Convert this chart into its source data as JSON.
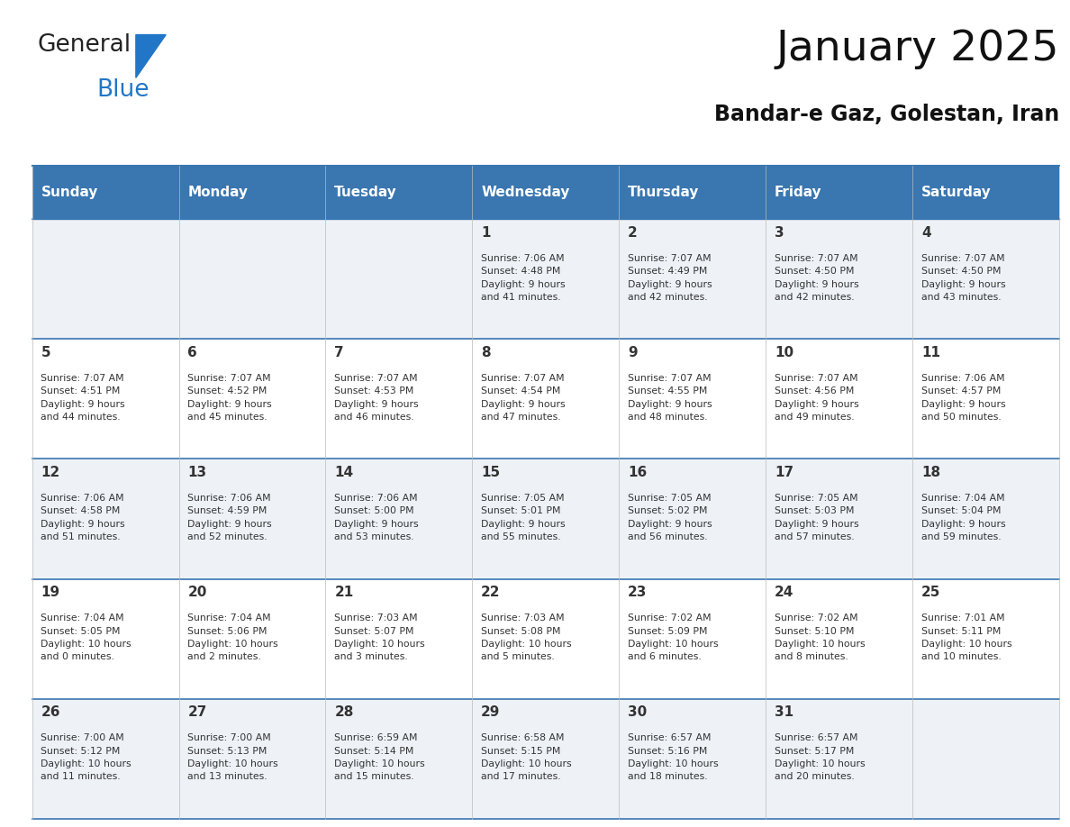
{
  "title": "January 2025",
  "subtitle": "Bandar-e Gaz, Golestan, Iran",
  "header_color": "#3a76b0",
  "header_text_color": "#ffffff",
  "cell_bg_even": "#eef2f7",
  "cell_bg_odd": "#ffffff",
  "border_color": "#3a76b0",
  "cell_border_color": "#bbbbbb",
  "text_color": "#333333",
  "days_of_week": [
    "Sunday",
    "Monday",
    "Tuesday",
    "Wednesday",
    "Thursday",
    "Friday",
    "Saturday"
  ],
  "calendar_data": [
    [
      {
        "day": "",
        "info": ""
      },
      {
        "day": "",
        "info": ""
      },
      {
        "day": "",
        "info": ""
      },
      {
        "day": "1",
        "info": "Sunrise: 7:06 AM\nSunset: 4:48 PM\nDaylight: 9 hours\nand 41 minutes."
      },
      {
        "day": "2",
        "info": "Sunrise: 7:07 AM\nSunset: 4:49 PM\nDaylight: 9 hours\nand 42 minutes."
      },
      {
        "day": "3",
        "info": "Sunrise: 7:07 AM\nSunset: 4:50 PM\nDaylight: 9 hours\nand 42 minutes."
      },
      {
        "day": "4",
        "info": "Sunrise: 7:07 AM\nSunset: 4:50 PM\nDaylight: 9 hours\nand 43 minutes."
      }
    ],
    [
      {
        "day": "5",
        "info": "Sunrise: 7:07 AM\nSunset: 4:51 PM\nDaylight: 9 hours\nand 44 minutes."
      },
      {
        "day": "6",
        "info": "Sunrise: 7:07 AM\nSunset: 4:52 PM\nDaylight: 9 hours\nand 45 minutes."
      },
      {
        "day": "7",
        "info": "Sunrise: 7:07 AM\nSunset: 4:53 PM\nDaylight: 9 hours\nand 46 minutes."
      },
      {
        "day": "8",
        "info": "Sunrise: 7:07 AM\nSunset: 4:54 PM\nDaylight: 9 hours\nand 47 minutes."
      },
      {
        "day": "9",
        "info": "Sunrise: 7:07 AM\nSunset: 4:55 PM\nDaylight: 9 hours\nand 48 minutes."
      },
      {
        "day": "10",
        "info": "Sunrise: 7:07 AM\nSunset: 4:56 PM\nDaylight: 9 hours\nand 49 minutes."
      },
      {
        "day": "11",
        "info": "Sunrise: 7:06 AM\nSunset: 4:57 PM\nDaylight: 9 hours\nand 50 minutes."
      }
    ],
    [
      {
        "day": "12",
        "info": "Sunrise: 7:06 AM\nSunset: 4:58 PM\nDaylight: 9 hours\nand 51 minutes."
      },
      {
        "day": "13",
        "info": "Sunrise: 7:06 AM\nSunset: 4:59 PM\nDaylight: 9 hours\nand 52 minutes."
      },
      {
        "day": "14",
        "info": "Sunrise: 7:06 AM\nSunset: 5:00 PM\nDaylight: 9 hours\nand 53 minutes."
      },
      {
        "day": "15",
        "info": "Sunrise: 7:05 AM\nSunset: 5:01 PM\nDaylight: 9 hours\nand 55 minutes."
      },
      {
        "day": "16",
        "info": "Sunrise: 7:05 AM\nSunset: 5:02 PM\nDaylight: 9 hours\nand 56 minutes."
      },
      {
        "day": "17",
        "info": "Sunrise: 7:05 AM\nSunset: 5:03 PM\nDaylight: 9 hours\nand 57 minutes."
      },
      {
        "day": "18",
        "info": "Sunrise: 7:04 AM\nSunset: 5:04 PM\nDaylight: 9 hours\nand 59 minutes."
      }
    ],
    [
      {
        "day": "19",
        "info": "Sunrise: 7:04 AM\nSunset: 5:05 PM\nDaylight: 10 hours\nand 0 minutes."
      },
      {
        "day": "20",
        "info": "Sunrise: 7:04 AM\nSunset: 5:06 PM\nDaylight: 10 hours\nand 2 minutes."
      },
      {
        "day": "21",
        "info": "Sunrise: 7:03 AM\nSunset: 5:07 PM\nDaylight: 10 hours\nand 3 minutes."
      },
      {
        "day": "22",
        "info": "Sunrise: 7:03 AM\nSunset: 5:08 PM\nDaylight: 10 hours\nand 5 minutes."
      },
      {
        "day": "23",
        "info": "Sunrise: 7:02 AM\nSunset: 5:09 PM\nDaylight: 10 hours\nand 6 minutes."
      },
      {
        "day": "24",
        "info": "Sunrise: 7:02 AM\nSunset: 5:10 PM\nDaylight: 10 hours\nand 8 minutes."
      },
      {
        "day": "25",
        "info": "Sunrise: 7:01 AM\nSunset: 5:11 PM\nDaylight: 10 hours\nand 10 minutes."
      }
    ],
    [
      {
        "day": "26",
        "info": "Sunrise: 7:00 AM\nSunset: 5:12 PM\nDaylight: 10 hours\nand 11 minutes."
      },
      {
        "day": "27",
        "info": "Sunrise: 7:00 AM\nSunset: 5:13 PM\nDaylight: 10 hours\nand 13 minutes."
      },
      {
        "day": "28",
        "info": "Sunrise: 6:59 AM\nSunset: 5:14 PM\nDaylight: 10 hours\nand 15 minutes."
      },
      {
        "day": "29",
        "info": "Sunrise: 6:58 AM\nSunset: 5:15 PM\nDaylight: 10 hours\nand 17 minutes."
      },
      {
        "day": "30",
        "info": "Sunrise: 6:57 AM\nSunset: 5:16 PM\nDaylight: 10 hours\nand 18 minutes."
      },
      {
        "day": "31",
        "info": "Sunrise: 6:57 AM\nSunset: 5:17 PM\nDaylight: 10 hours\nand 20 minutes."
      },
      {
        "day": "",
        "info": ""
      }
    ]
  ],
  "logo_text_general": "General",
  "logo_text_blue": "Blue",
  "logo_color_general": "#222222",
  "logo_color_blue": "#2176c7"
}
